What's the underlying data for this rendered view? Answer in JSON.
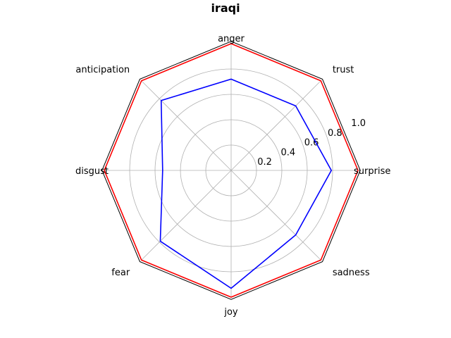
{
  "chart_data": {
    "type": "radar",
    "title": "iraqi",
    "categories": [
      "surprise",
      "trust",
      "anger",
      "anticipation",
      "disgust",
      "fear",
      "joy",
      "sadness"
    ],
    "radial_ticks": [
      "0.2",
      "0.4",
      "0.6",
      "0.8",
      "1.0"
    ],
    "radial_tick_values": [
      0.2,
      0.4,
      0.6,
      0.8,
      1.0
    ],
    "rmax": 1.0,
    "grid": true,
    "series": [
      {
        "color": "#ff0000",
        "values": [
          1.0,
          1.0,
          1.0,
          1.0,
          1.0,
          1.0,
          1.0,
          1.0
        ]
      },
      {
        "color": "#0000ff",
        "values": [
          0.79,
          0.72,
          0.72,
          0.78,
          0.54,
          0.79,
          0.93,
          0.72
        ]
      }
    ],
    "frame_color": "#000000",
    "grid_color": "#b0b0b0"
  }
}
